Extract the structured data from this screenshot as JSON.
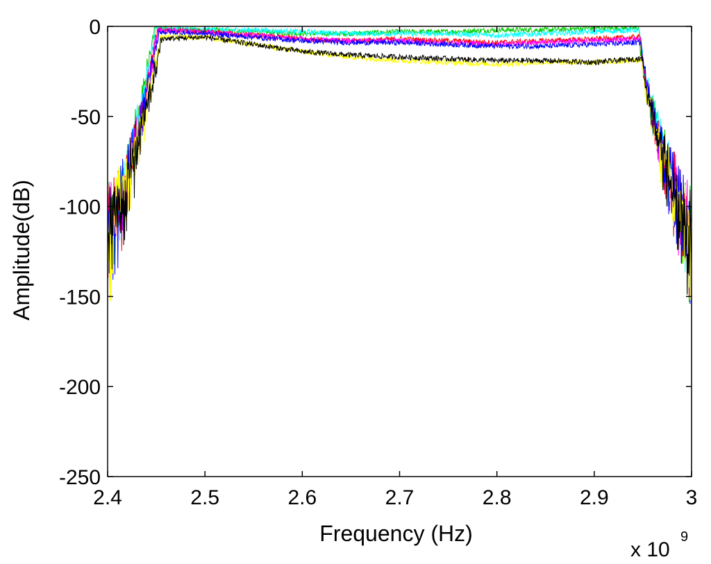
{
  "chart_data": {
    "type": "line",
    "title": "",
    "xlabel": "Frequency (Hz)",
    "ylabel": "Amplitude(dB)",
    "x_multiplier_label": "x 10",
    "x_multiplier_exponent": "9",
    "xlim": [
      2.4,
      3.0
    ],
    "ylim": [
      -250,
      0
    ],
    "x_ticks": [
      2.4,
      2.5,
      2.6,
      2.7,
      2.8,
      2.9,
      3.0
    ],
    "x_tick_labels": [
      "2.4",
      "2.5",
      "2.6",
      "2.7",
      "2.8",
      "2.9",
      "3"
    ],
    "y_ticks": [
      0,
      -50,
      -100,
      -150,
      -200,
      -250
    ],
    "y_tick_labels": [
      "0",
      "-50",
      "-100",
      "-150",
      "-200",
      "-250"
    ],
    "grid": false,
    "legend": "none",
    "series": [
      {
        "color": "#00cc00",
        "passband_x": [
          2.45,
          2.5,
          2.55,
          2.6,
          2.65,
          2.7,
          2.75,
          2.8,
          2.85,
          2.9,
          2.945
        ],
        "passband_y": [
          -1,
          -2,
          -3,
          -4,
          -4,
          -3,
          -3,
          -2,
          -2,
          -1,
          -1
        ]
      },
      {
        "color": "#00ffff",
        "passband_x": [
          2.45,
          2.5,
          2.55,
          2.6,
          2.65,
          2.7,
          2.75,
          2.8,
          2.85,
          2.9,
          2.945
        ],
        "passband_y": [
          -1,
          -2,
          -2,
          -3,
          -4,
          -4,
          -4,
          -5,
          -4,
          -3,
          -2
        ]
      },
      {
        "color": "#ff0000",
        "passband_x": [
          2.45,
          2.5,
          2.55,
          2.6,
          2.65,
          2.7,
          2.75,
          2.8,
          2.85,
          2.9,
          2.945
        ],
        "passband_y": [
          -2,
          -3,
          -5,
          -7,
          -8,
          -7,
          -8,
          -9,
          -8,
          -7,
          -6
        ]
      },
      {
        "color": "#ff00ff",
        "passband_x": [
          2.45,
          2.5,
          2.55,
          2.6,
          2.65,
          2.7,
          2.75,
          2.8,
          2.85,
          2.9,
          2.945
        ],
        "passband_y": [
          -2,
          -3,
          -5,
          -7,
          -8,
          -8,
          -9,
          -10,
          -9,
          -8,
          -7
        ]
      },
      {
        "color": "#0000ff",
        "passband_x": [
          2.45,
          2.5,
          2.55,
          2.6,
          2.65,
          2.7,
          2.75,
          2.8,
          2.85,
          2.9,
          2.945
        ],
        "passband_y": [
          -3,
          -4,
          -6,
          -8,
          -9,
          -9,
          -10,
          -11,
          -11,
          -10,
          -9
        ]
      },
      {
        "color": "#ffff00",
        "passband_x": [
          2.45,
          2.5,
          2.55,
          2.6,
          2.65,
          2.7,
          2.75,
          2.8,
          2.85,
          2.9,
          2.945
        ],
        "passband_y": [
          -6,
          -6,
          -10,
          -14,
          -17,
          -19,
          -20,
          -21,
          -20,
          -20,
          -19
        ]
      },
      {
        "color": "#000000",
        "passband_x": [
          2.45,
          2.5,
          2.55,
          2.6,
          2.65,
          2.7,
          2.75,
          2.8,
          2.85,
          2.9,
          2.945
        ],
        "passband_y": [
          -7,
          -6,
          -10,
          -14,
          -16,
          -17,
          -18,
          -19,
          -19,
          -20,
          -18
        ]
      }
    ]
  }
}
